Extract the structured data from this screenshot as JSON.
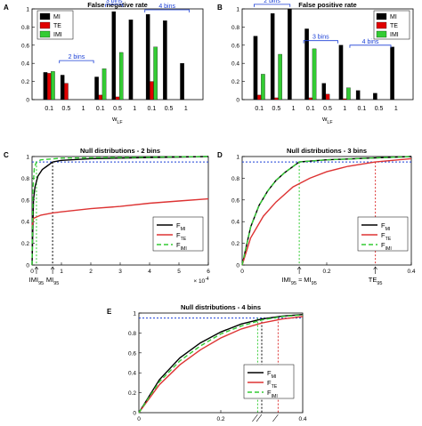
{
  "chart_data": [
    {
      "panel": "A",
      "type": "bar",
      "title": "False negative rate",
      "xlabel_main": "w",
      "xlabel_sub": "LF",
      "ylim": [
        0,
        1
      ],
      "yticks": [
        "0",
        "0.2",
        "0.4",
        "0.6",
        "0.8",
        "1"
      ],
      "tick_labels": [
        "0.1",
        "0.5",
        "1",
        "0.1",
        "0.5",
        "1",
        "0.1",
        "0.5",
        "1"
      ],
      "groups": [
        "2 bins",
        "3 bins",
        "4 bins"
      ],
      "series": [
        {
          "name": "MI",
          "color": "#000000",
          "values": [
            0.3,
            0.27,
            0.0,
            0.25,
            0.97,
            0.88,
            0.94,
            0.87,
            0.4
          ]
        },
        {
          "name": "TE",
          "color": "#e00000",
          "values": [
            0.29,
            0.18,
            0.0,
            0.05,
            0.03,
            0.0,
            0.2,
            0.0,
            0.0
          ]
        },
        {
          "name": "IMI",
          "color": "#33cc33",
          "values": [
            0.31,
            0.0,
            0.0,
            0.34,
            0.52,
            0.0,
            0.58,
            0.0,
            0.0
          ]
        }
      ]
    },
    {
      "panel": "B",
      "type": "bar",
      "title": "False positive rate",
      "xlabel_main": "w",
      "xlabel_sub": "LF",
      "ylim": [
        0,
        1
      ],
      "yticks": [
        "0",
        "0.2",
        "0.4",
        "0.6",
        "0.8",
        "1"
      ],
      "tick_labels": [
        "0.1",
        "0.5",
        "1",
        "0.1",
        "0.5",
        "1",
        "0.1",
        "0.5",
        "1"
      ],
      "groups": [
        "2 bins",
        "3 bins",
        "4 bins"
      ],
      "series": [
        {
          "name": "MI",
          "color": "#000000",
          "values": [
            0.7,
            0.95,
            1.0,
            0.78,
            0.18,
            0.6,
            0.1,
            0.07,
            0.58
          ]
        },
        {
          "name": "TE",
          "color": "#e00000",
          "values": [
            0.05,
            0.02,
            0.0,
            0.02,
            0.06,
            0.01,
            0.0,
            0.0,
            0.0
          ]
        },
        {
          "name": "IMI",
          "color": "#33cc33",
          "values": [
            0.28,
            0.5,
            0.0,
            0.56,
            0.0,
            0.13,
            0.0,
            0.0,
            0.0
          ]
        }
      ]
    },
    {
      "panel": "C",
      "type": "line",
      "title": "Null distributions - 2 bins",
      "xlim": [
        0,
        6
      ],
      "xticks": [
        "0",
        "1",
        "2",
        "3",
        "4",
        "5",
        "6"
      ],
      "x_multiplier": "× 10",
      "x_multiplier_exp": "-4",
      "ylim": [
        0,
        1
      ],
      "yticks": [
        "0",
        "0.2",
        "0.4",
        "0.6",
        "0.8",
        "1"
      ],
      "annotations": [
        {
          "text": "IMI",
          "sub": "95",
          "x": 0.15
        },
        {
          "text": "MI",
          "sub": "95",
          "x": 0.7
        }
      ],
      "series": [
        {
          "name": "F",
          "sub": "MI",
          "color": "#000000",
          "dash": "",
          "points": [
            [
              0,
              0
            ],
            [
              0.05,
              0.6
            ],
            [
              0.1,
              0.72
            ],
            [
              0.2,
              0.82
            ],
            [
              0.35,
              0.88
            ],
            [
              0.5,
              0.91
            ],
            [
              0.7,
              0.95
            ],
            [
              1,
              0.965
            ],
            [
              2,
              0.98
            ],
            [
              4,
              0.99
            ],
            [
              6,
              1.0
            ]
          ]
        },
        {
          "name": "F",
          "sub": "TE",
          "color": "#dd3333",
          "dash": "",
          "points": [
            [
              0,
              0.35
            ],
            [
              0.05,
              0.43
            ],
            [
              0.3,
              0.46
            ],
            [
              0.7,
              0.48
            ],
            [
              1,
              0.49
            ],
            [
              2,
              0.52
            ],
            [
              3,
              0.54
            ],
            [
              4,
              0.57
            ],
            [
              5,
              0.59
            ],
            [
              6,
              0.61
            ]
          ]
        },
        {
          "name": "F",
          "sub": "IMI",
          "color": "#33cc33",
          "dash": "5,3",
          "points": [
            [
              0,
              0
            ],
            [
              0.03,
              0.7
            ],
            [
              0.08,
              0.9
            ],
            [
              0.15,
              0.95
            ],
            [
              0.3,
              0.97
            ],
            [
              1,
              0.985
            ],
            [
              6,
              1.0
            ]
          ]
        }
      ],
      "threshold": 0.95,
      "vlines": [
        {
          "x": 0.15,
          "color": "#33cc33"
        },
        {
          "x": 0.7,
          "color": "#000000"
        }
      ]
    },
    {
      "panel": "D",
      "type": "line",
      "title": "Null distributions - 3 bins",
      "xlim": [
        0,
        0.4
      ],
      "xticks": [
        "0",
        "0.2",
        "0.4"
      ],
      "ylim": [
        0,
        1
      ],
      "yticks": [
        "0",
        "0.2",
        "0.4",
        "0.6",
        "0.8",
        "1"
      ],
      "annotations": [
        {
          "text": "IMI",
          "sub": "95",
          "mid": " ≈ MI",
          "sub2": "95",
          "x": 0.135
        },
        {
          "text": "TE",
          "sub": "95",
          "x": 0.315
        }
      ],
      "series": [
        {
          "name": "F",
          "sub": "MI",
          "color": "#000000",
          "dash": "",
          "points": [
            [
              0,
              0
            ],
            [
              0.02,
              0.35
            ],
            [
              0.04,
              0.55
            ],
            [
              0.06,
              0.68
            ],
            [
              0.08,
              0.78
            ],
            [
              0.1,
              0.85
            ],
            [
              0.135,
              0.95
            ],
            [
              0.2,
              0.97
            ],
            [
              0.3,
              0.985
            ],
            [
              0.4,
              1.0
            ]
          ]
        },
        {
          "name": "F",
          "sub": "TE",
          "color": "#dd3333",
          "dash": "",
          "points": [
            [
              0,
              0
            ],
            [
              0.02,
              0.25
            ],
            [
              0.05,
              0.45
            ],
            [
              0.08,
              0.58
            ],
            [
              0.12,
              0.72
            ],
            [
              0.16,
              0.8
            ],
            [
              0.2,
              0.86
            ],
            [
              0.25,
              0.91
            ],
            [
              0.315,
              0.95
            ],
            [
              0.4,
              0.98
            ]
          ]
        },
        {
          "name": "F",
          "sub": "IMI",
          "color": "#33cc33",
          "dash": "5,3",
          "points": [
            [
              0,
              0
            ],
            [
              0.02,
              0.35
            ],
            [
              0.04,
              0.55
            ],
            [
              0.06,
              0.68
            ],
            [
              0.08,
              0.78
            ],
            [
              0.1,
              0.85
            ],
            [
              0.135,
              0.95
            ],
            [
              0.2,
              0.97
            ],
            [
              0.3,
              0.985
            ],
            [
              0.4,
              1.0
            ]
          ]
        }
      ],
      "threshold": 0.95,
      "vlines": [
        {
          "x": 0.135,
          "color": "#33cc33"
        },
        {
          "x": 0.315,
          "color": "#dd3333"
        }
      ]
    },
    {
      "panel": "E",
      "type": "line",
      "title": "Null distributions - 4 bins",
      "xlim": [
        0,
        0.4
      ],
      "xticks": [
        "0",
        "0.2",
        "0.4"
      ],
      "ylim": [
        0,
        1
      ],
      "yticks": [
        "0",
        "0.2",
        "0.4",
        "0.6",
        "0.8",
        "1"
      ],
      "series": [
        {
          "name": "F",
          "sub": "MI",
          "color": "#000000",
          "dash": "",
          "points": [
            [
              0,
              0
            ],
            [
              0.05,
              0.33
            ],
            [
              0.1,
              0.55
            ],
            [
              0.15,
              0.7
            ],
            [
              0.2,
              0.81
            ],
            [
              0.25,
              0.89
            ],
            [
              0.3,
              0.94
            ],
            [
              0.35,
              0.97
            ],
            [
              0.4,
              0.985
            ]
          ]
        },
        {
          "name": "F",
          "sub": "TE",
          "color": "#dd3333",
          "dash": "",
          "points": [
            [
              0,
              0
            ],
            [
              0.05,
              0.28
            ],
            [
              0.1,
              0.48
            ],
            [
              0.15,
              0.63
            ],
            [
              0.2,
              0.75
            ],
            [
              0.25,
              0.84
            ],
            [
              0.3,
              0.9
            ],
            [
              0.35,
              0.94
            ],
            [
              0.4,
              0.965
            ]
          ]
        },
        {
          "name": "F",
          "sub": "IMI",
          "color": "#33cc33",
          "dash": "5,3",
          "points": [
            [
              0,
              0
            ],
            [
              0.05,
              0.31
            ],
            [
              0.1,
              0.52
            ],
            [
              0.15,
              0.67
            ],
            [
              0.2,
              0.79
            ],
            [
              0.25,
              0.87
            ],
            [
              0.3,
              0.93
            ],
            [
              0.35,
              0.965
            ],
            [
              0.4,
              0.98
            ]
          ]
        }
      ],
      "threshold": 0.95,
      "vlines": [
        {
          "x": 0.29,
          "color": "#33cc33"
        },
        {
          "x": 0.3,
          "color": "#000000"
        },
        {
          "x": 0.34,
          "color": "#dd3333"
        }
      ]
    }
  ]
}
